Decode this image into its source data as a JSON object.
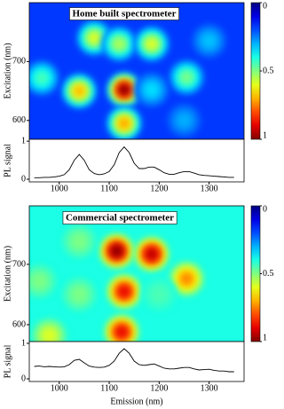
{
  "chart_data": [
    {
      "type": "heatmap",
      "title": "Home built spectrometer",
      "ylabel": "Excitation (nm)",
      "xlim": [
        940,
        1370
      ],
      "ylim": [
        568,
        800
      ],
      "yticks": [
        600,
        700
      ],
      "background": 0.18,
      "x": [
        1040,
        1130,
        1130,
        1070,
        1120,
        1185,
        965,
        1255,
        1250,
        1185,
        1300
      ],
      "y": [
        650,
        652,
        595,
        740,
        730,
        730,
        672,
        673,
        600,
        652,
        735
      ],
      "z": [
        0.7,
        1.0,
        0.72,
        0.6,
        0.55,
        0.6,
        0.45,
        0.5,
        0.3,
        0.35,
        0.32
      ],
      "clim": [
        0,
        1
      ],
      "cticks": [
        0,
        0.5,
        1
      ]
    },
    {
      "type": "line",
      "ylabel": "PL signal",
      "color": "#000000",
      "xlim": [
        940,
        1370
      ],
      "ylim": [
        0,
        1.05
      ],
      "yticks": [
        0,
        1
      ],
      "xticks": [
        1000,
        1100,
        1200,
        1300
      ],
      "x": [
        950,
        960,
        970,
        980,
        990,
        1000,
        1010,
        1020,
        1030,
        1040,
        1050,
        1060,
        1070,
        1080,
        1090,
        1100,
        1110,
        1120,
        1130,
        1140,
        1150,
        1160,
        1170,
        1180,
        1190,
        1200,
        1210,
        1220,
        1230,
        1240,
        1250,
        1260,
        1270,
        1280,
        1290,
        1300,
        1310,
        1320,
        1330,
        1340,
        1350
      ],
      "values": [
        0.04,
        0.04,
        0.05,
        0.05,
        0.06,
        0.08,
        0.12,
        0.25,
        0.5,
        0.65,
        0.5,
        0.25,
        0.15,
        0.12,
        0.14,
        0.2,
        0.38,
        0.7,
        0.85,
        0.7,
        0.42,
        0.28,
        0.28,
        0.32,
        0.32,
        0.25,
        0.17,
        0.13,
        0.13,
        0.17,
        0.2,
        0.2,
        0.16,
        0.12,
        0.1,
        0.09,
        0.08,
        0.07,
        0.06,
        0.05,
        0.05
      ]
    },
    {
      "type": "heatmap",
      "title": "Commercial spectrometer",
      "ylabel": "Excitation (nm)",
      "xlim": [
        940,
        1370
      ],
      "ylim": [
        572,
        797
      ],
      "yticks": [
        600,
        700
      ],
      "background": 0.4,
      "x": [
        1115,
        1185,
        1130,
        1125,
        1255,
        1040,
        960,
        980,
        1040,
        1200
      ],
      "y": [
        722,
        717,
        655,
        588,
        676,
        738,
        672,
        582,
        650,
        650
      ],
      "z": [
        1.0,
        0.95,
        0.9,
        0.9,
        0.75,
        0.5,
        0.5,
        0.6,
        0.5,
        0.45
      ],
      "clim": [
        0,
        1
      ],
      "cticks": [
        0,
        0.5,
        1
      ]
    },
    {
      "type": "line",
      "ylabel": "PL signal",
      "xlabel": "Emission (nm)",
      "color": "#000000",
      "xlim": [
        940,
        1370
      ],
      "ylim": [
        0,
        1.05
      ],
      "yticks": [
        0,
        1
      ],
      "xticks": [
        1000,
        1100,
        1200,
        1300
      ],
      "x": [
        950,
        960,
        970,
        980,
        990,
        1000,
        1010,
        1020,
        1030,
        1040,
        1050,
        1060,
        1070,
        1080,
        1090,
        1100,
        1110,
        1120,
        1130,
        1140,
        1150,
        1160,
        1170,
        1180,
        1190,
        1200,
        1210,
        1220,
        1230,
        1240,
        1250,
        1260,
        1270,
        1280,
        1290,
        1300,
        1310,
        1320,
        1330,
        1340,
        1350
      ],
      "values": [
        0.35,
        0.36,
        0.34,
        0.35,
        0.34,
        0.33,
        0.34,
        0.4,
        0.52,
        0.55,
        0.45,
        0.36,
        0.33,
        0.32,
        0.33,
        0.38,
        0.5,
        0.72,
        0.85,
        0.72,
        0.5,
        0.4,
        0.38,
        0.4,
        0.42,
        0.36,
        0.3,
        0.28,
        0.28,
        0.3,
        0.32,
        0.32,
        0.28,
        0.25,
        0.26,
        0.27,
        0.24,
        0.22,
        0.22,
        0.2,
        0.2
      ]
    }
  ]
}
